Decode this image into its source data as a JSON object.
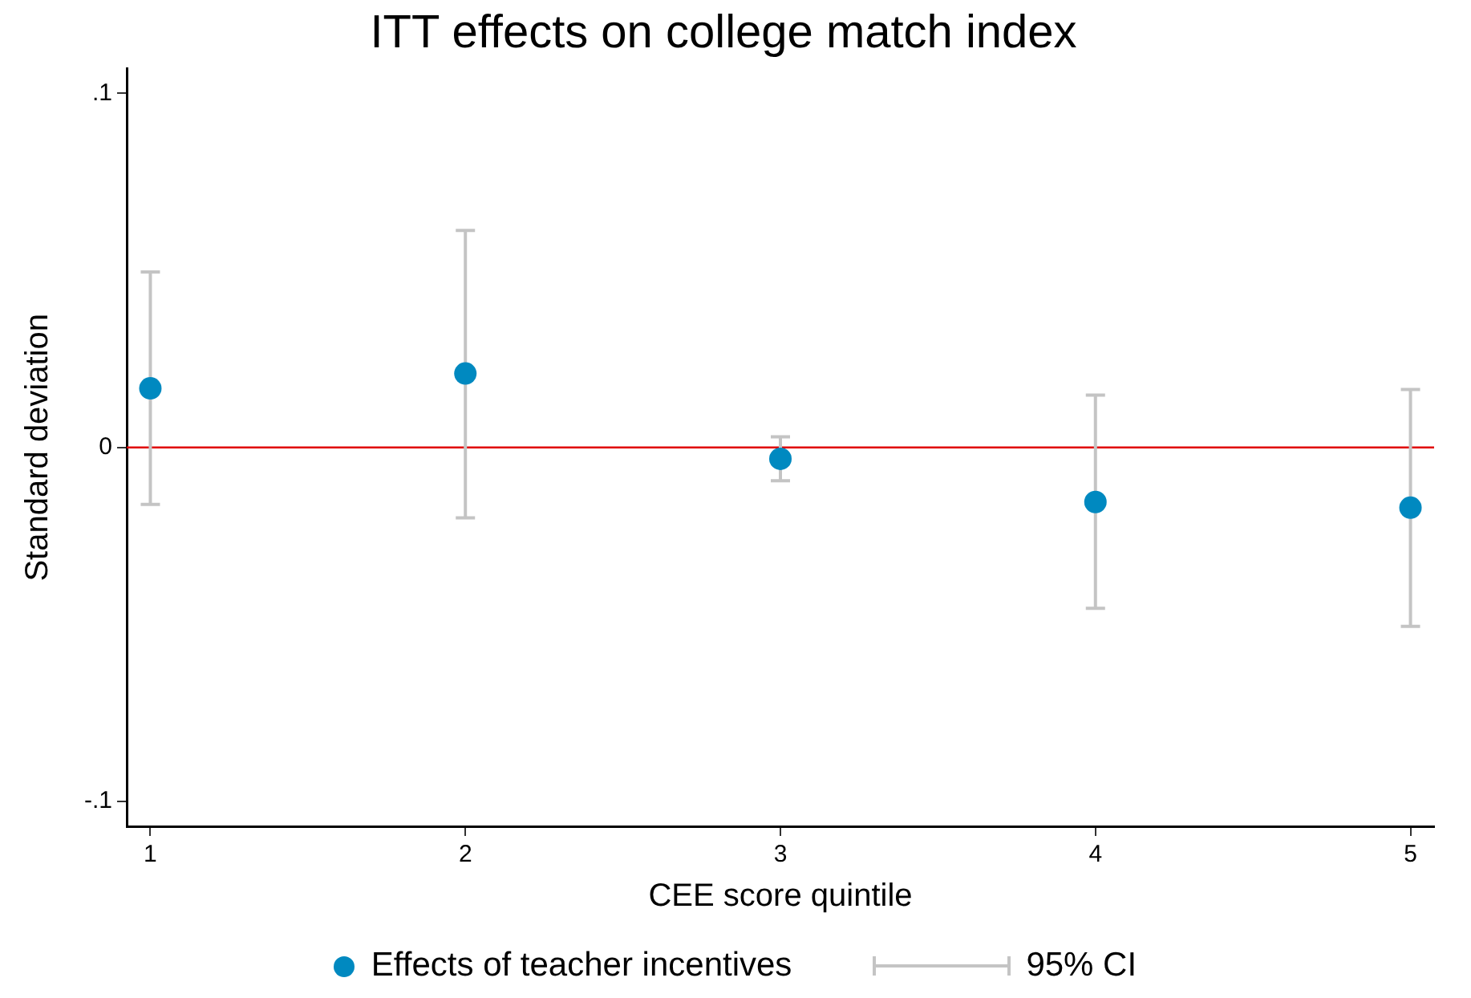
{
  "chart_data": {
    "type": "scatter",
    "title": "ITT effects on college match index",
    "xlabel": "CEE score quintile",
    "ylabel": "Standard deviation",
    "x": [
      1,
      2,
      3,
      4,
      5
    ],
    "series": [
      {
        "name": "Effects of teacher incentives",
        "color": "#0089c0",
        "values": [
          0.0167,
          0.0209,
          -0.0032,
          -0.0154,
          -0.017
        ],
        "errors": [
          [
            -0.0161,
            0.0496
          ],
          [
            -0.0199,
            0.0613
          ],
          [
            -0.0094,
            0.003
          ],
          [
            -0.0454,
            0.0148
          ],
          [
            -0.0505,
            0.0164
          ]
        ]
      }
    ],
    "annotations": [
      "95% CI"
    ],
    "xlim": [
      0.925,
      5.075
    ],
    "xticks": [
      1,
      2,
      3,
      4,
      5
    ],
    "ylim": [
      -0.107,
      0.107
    ],
    "yticks": [
      {
        "value": -0.1,
        "label": "-.1"
      },
      {
        "value": 0,
        "label": "0"
      },
      {
        "value": 0.1,
        "label": ".1"
      }
    ],
    "ref_lines": [
      {
        "axis": "y",
        "value": 0,
        "color": "#e00000"
      }
    ],
    "grid": false,
    "legend": "bottom",
    "marker": "circle"
  }
}
